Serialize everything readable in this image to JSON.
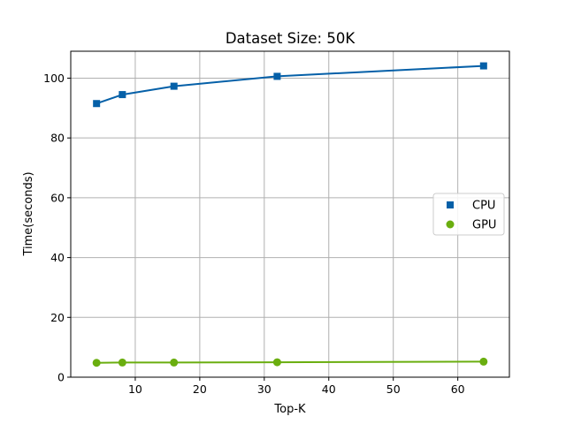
{
  "chart_data": {
    "type": "line",
    "title": "Dataset Size: 50K",
    "xlabel": "Top-K",
    "ylabel": "Time(seconds)",
    "x": [
      4,
      8,
      16,
      32,
      64
    ],
    "xlim": [
      0,
      68
    ],
    "ylim": [
      0,
      109
    ],
    "xticks": [
      10,
      20,
      30,
      40,
      50,
      60
    ],
    "yticks": [
      0,
      20,
      40,
      60,
      80,
      100
    ],
    "grid": true,
    "legend": "center-right",
    "series": [
      {
        "name": "CPU",
        "marker": "square",
        "color": "#0560a8",
        "values": [
          91.5,
          94.5,
          97.3,
          100.6,
          104.1
        ]
      },
      {
        "name": "GPU",
        "marker": "circle",
        "color": "#6aae0f",
        "values": [
          4.8,
          4.9,
          4.9,
          5.0,
          5.2
        ]
      }
    ]
  }
}
